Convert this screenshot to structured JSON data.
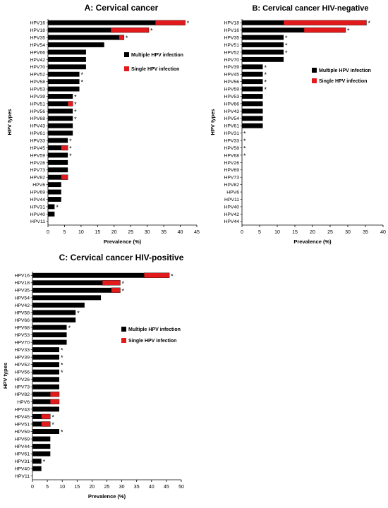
{
  "colors": {
    "multiple": "#000000",
    "single": "#e31a1c",
    "axis": "#000000"
  },
  "chart_data": [
    {
      "type": "bar",
      "orientation": "horizontal",
      "stacked": true,
      "title": "A: Cervical cancer",
      "xlabel": "Prevalence (%)",
      "ylabel": "HPV types",
      "xlim": [
        0,
        45
      ],
      "xticks": [
        0,
        5,
        10,
        15,
        20,
        25,
        30,
        35,
        40,
        45
      ],
      "legend": {
        "position": "right",
        "entries": [
          "Multiple HPV infection",
          "Single HPV infection"
        ]
      },
      "categories": [
        "HPV16",
        "HPV18",
        "HPV35",
        "HPV54",
        "HPV66",
        "HPV42",
        "HPV70",
        "HPV52",
        "HPV58",
        "HPV53",
        "HPV39",
        "HPV51",
        "HPV56",
        "HPV68",
        "HPV43",
        "HPV61",
        "HPV33",
        "HPV45",
        "HPV59",
        "HPV26",
        "HPV73",
        "HPV82",
        "HPV6",
        "HPV69",
        "HPV44",
        "HPV31",
        "HPV40",
        "HPV11"
      ],
      "series": [
        {
          "name": "Multiple HPV infection",
          "values": [
            32.5,
            19,
            21.5,
            17,
            11.5,
            11.5,
            11.5,
            9.5,
            9.5,
            9.5,
            7.5,
            6,
            7.5,
            7.5,
            7.5,
            7.5,
            6,
            4,
            6,
            6,
            6,
            4,
            4,
            4,
            4,
            2,
            2,
            0
          ]
        },
        {
          "name": "Single HPV infection",
          "values": [
            9,
            11.5,
            1.5,
            0,
            0,
            0,
            0,
            0,
            0,
            0,
            0,
            1.5,
            0,
            0,
            0,
            0,
            0,
            2,
            0,
            0,
            0,
            2,
            0,
            0,
            0,
            0,
            0,
            0
          ]
        }
      ],
      "significant": [
        "HPV16",
        "HPV18",
        "HPV35",
        "HPV52",
        "HPV58",
        "HPV39",
        "HPV51",
        "HPV56",
        "HPV68",
        "HPV33",
        "HPV45",
        "HPV59",
        "HPV31"
      ],
      "marker": "*"
    },
    {
      "type": "bar",
      "orientation": "horizontal",
      "stacked": true,
      "title": "B: Cervical cancer HIV-negative",
      "xlabel": "Prevalence (%)",
      "ylabel": "HPV types",
      "xlim": [
        0,
        40
      ],
      "xticks": [
        0,
        5,
        10,
        15,
        20,
        25,
        30,
        35,
        40
      ],
      "legend": {
        "position": "right",
        "entries": [
          "Multiple HPV infection",
          "Single HPV infection"
        ]
      },
      "categories": [
        "HPV18",
        "HPV16",
        "HPV35",
        "HPV51",
        "HPV52",
        "HPV70",
        "HPV39",
        "HPV45",
        "HPV56",
        "HPV59",
        "HPV53",
        "HPV66",
        "HPV43",
        "HPV54",
        "HPV61",
        "HPV31",
        "HPV33",
        "HPV58",
        "HPV68",
        "HPV26",
        "HPV69",
        "HPV73",
        "HPV82",
        "HPV6",
        "HPV11",
        "HPV40",
        "HPV42",
        "HPV44"
      ],
      "series": [
        {
          "name": "Multiple HPV infection",
          "values": [
            11.8,
            17.6,
            11.8,
            11.8,
            11.8,
            11.8,
            5.9,
            5.9,
            5.9,
            5.9,
            5.9,
            5.9,
            5.9,
            5.9,
            5.9,
            0,
            0,
            0,
            0,
            0,
            0,
            0,
            0,
            0,
            0,
            0,
            0,
            0
          ]
        },
        {
          "name": "Single HPV infection",
          "values": [
            23.5,
            11.8,
            0,
            0,
            0,
            0,
            0,
            0,
            0,
            0,
            0,
            0,
            0,
            0,
            0,
            0,
            0,
            0,
            0,
            0,
            0,
            0,
            0,
            0,
            0,
            0,
            0,
            0
          ]
        }
      ],
      "significant": [
        "HPV18",
        "HPV16",
        "HPV35",
        "HPV51",
        "HPV52",
        "HPV39",
        "HPV45",
        "HPV56",
        "HPV59",
        "HPV31",
        "HPV33",
        "HPV58",
        "HPV68"
      ],
      "marker": "*"
    },
    {
      "type": "bar",
      "orientation": "horizontal",
      "stacked": true,
      "title": "C: Cervical cancer HIV-positive",
      "xlabel": "Prevalence (%)",
      "ylabel": "HPV types",
      "xlim": [
        0,
        50
      ],
      "xticks": [
        0,
        5,
        10,
        15,
        20,
        25,
        30,
        35,
        40,
        45,
        50
      ],
      "legend": {
        "position": "right",
        "entries": [
          "Multiple HPV infection",
          "Single HPV infection"
        ]
      },
      "categories": [
        "HPV16",
        "HPV18",
        "HPV35",
        "HPV54",
        "HPV42",
        "HPV58",
        "HPV66",
        "HPV68",
        "HPV53",
        "HPV70",
        "HPV33",
        "HPV39",
        "HPV52",
        "HPV56",
        "HPV26",
        "HPV73",
        "HPV82",
        "HPV6",
        "HPV43",
        "HPV45",
        "HPV51",
        "HPV59",
        "HPV69",
        "HPV44",
        "HPV61",
        "HPV31",
        "HPV40",
        "HPV11"
      ],
      "series": [
        {
          "name": "Multiple HPV infection",
          "values": [
            37.5,
            23.5,
            26.5,
            23,
            17.5,
            14.5,
            14.5,
            11.5,
            11.5,
            11.5,
            9,
            9,
            9,
            9,
            9,
            9,
            6,
            6,
            9,
            3,
            3,
            9,
            6,
            6,
            6,
            3,
            3,
            0
          ]
        },
        {
          "name": "Single HPV infection",
          "values": [
            8.5,
            6,
            3,
            0,
            0,
            0,
            0,
            0,
            0,
            0,
            0,
            0,
            0,
            0,
            0,
            0,
            3,
            3,
            0,
            3,
            3,
            0,
            0,
            0,
            0,
            0,
            0,
            0
          ]
        }
      ],
      "significant": [
        "HPV16",
        "HPV18",
        "HPV35",
        "HPV58",
        "HPV68",
        "HPV33",
        "HPV39",
        "HPV52",
        "HPV56",
        "HPV45",
        "HPV51",
        "HPV59",
        "HPV31"
      ],
      "marker": "*"
    }
  ]
}
